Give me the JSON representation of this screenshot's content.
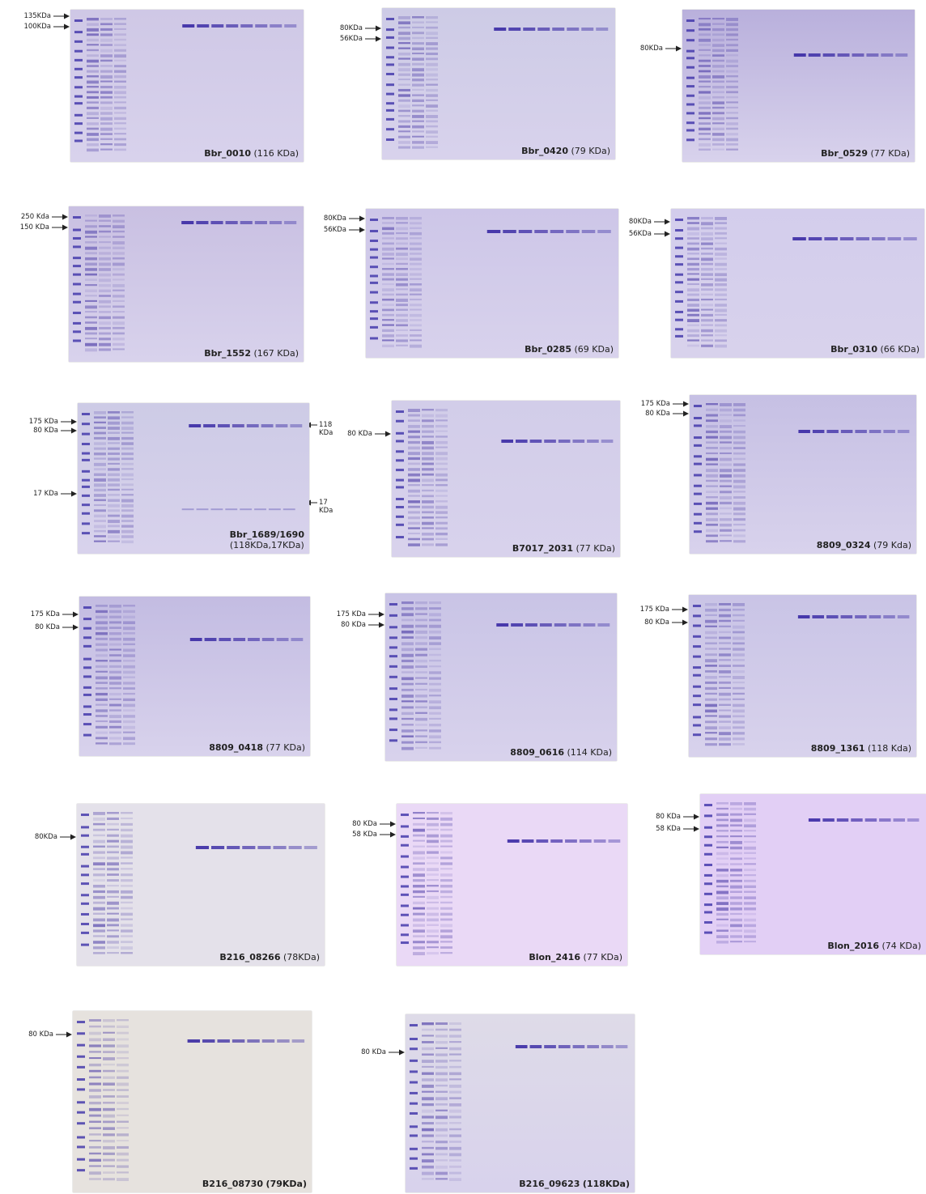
{
  "gels": [
    {
      "name": "Bbr_0010",
      "size": "(116 KDa)",
      "markers": [
        "135KDa",
        "100KDa"
      ]
    },
    {
      "name": "Bbr_0420",
      "size": "(79 KDa)",
      "markers": [
        "80KDa",
        "56KDa"
      ]
    },
    {
      "name": "Bbr_0529",
      "size": "(77 KDa)",
      "markers": [
        "80KDa"
      ]
    },
    {
      "name": "Bbr_1552",
      "size": "(167 KDa)",
      "markers": [
        "250 Kda",
        "150 KDa"
      ]
    },
    {
      "name": "Bbr_0285",
      "size": "(69 KDa)",
      "markers": [
        "80KDa",
        "56KDa"
      ]
    },
    {
      "name": "Bbr_0310",
      "size": "(66 KDa)",
      "markers": [
        "80KDa",
        "56KDa"
      ]
    },
    {
      "name": "Bbr_1689/1690",
      "size": "(118KDa,17KDa)",
      "markers": [
        "175 KDa",
        "80 KDa",
        "17 KDa"
      ],
      "right_markers": [
        "118 KDa",
        "17 KDa"
      ]
    },
    {
      "name": "B7017_2031",
      "size": "(77 KDa)",
      "markers": [
        "80 KDa"
      ]
    },
    {
      "name": "8809_0324",
      "size": "(79 Kda)",
      "markers": [
        "175 KDa",
        "80 KDa"
      ]
    },
    {
      "name": "8809_0418",
      "size": "(77 KDa)",
      "markers": [
        "175 KDa",
        "80 KDa"
      ]
    },
    {
      "name": "8809_0616",
      "size": "(114 KDa)",
      "markers": [
        "175 KDa",
        "80 KDa"
      ]
    },
    {
      "name": "8809_1361",
      "size": "(118 Kda)",
      "markers": [
        "175 KDa",
        "80 KDa"
      ]
    },
    {
      "name": "B216_08266",
      "size": "(78KDa)",
      "markers": [
        "80KDa"
      ]
    },
    {
      "name": "Blon_2416",
      "size": "(77 KDa)",
      "markers": [
        "80 KDa",
        "58 KDa"
      ]
    },
    {
      "name": "Blon_2016",
      "size": "(74 KDa)",
      "markers": [
        "80 KDa",
        "58 KDa"
      ]
    },
    {
      "name": "B216_08730",
      "size": "(79KDa)",
      "markers": [
        "80 KDa"
      ]
    },
    {
      "name": "B216_09623",
      "size": "(118KDa)",
      "markers": [
        "80 KDa"
      ]
    }
  ]
}
